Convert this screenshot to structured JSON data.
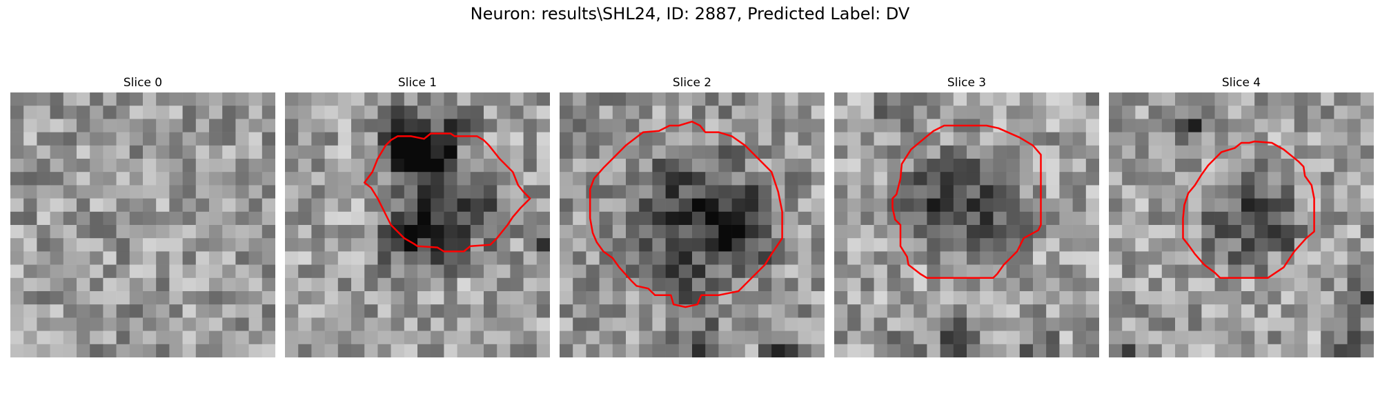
{
  "figure": {
    "title": "Neuron: results\\SHL24, ID: 2887, Predicted Label: DV"
  },
  "panels": [
    {
      "title": "Slice 0",
      "contour": [],
      "blobs": [],
      "base": 155,
      "seed": 11
    },
    {
      "title": "Slice 1",
      "contour": [
        [
          10.5,
          3.5
        ],
        [
          11,
          3.1
        ],
        [
          12.5,
          3.1
        ],
        [
          12.8,
          3.3
        ],
        [
          14.5,
          3.3
        ],
        [
          15,
          3.6
        ],
        [
          15.4,
          4
        ],
        [
          16.2,
          5
        ],
        [
          17.2,
          6
        ],
        [
          17.6,
          7
        ],
        [
          18,
          7.5
        ],
        [
          18.5,
          8
        ],
        [
          17.8,
          8.7
        ],
        [
          17.2,
          9.4
        ],
        [
          16.8,
          10
        ],
        [
          16,
          11
        ],
        [
          15.5,
          11.5
        ],
        [
          14,
          11.6
        ],
        [
          13.5,
          12
        ],
        [
          12,
          12
        ],
        [
          11.5,
          11.7
        ],
        [
          10,
          11.6
        ],
        [
          9.7,
          11.4
        ],
        [
          9,
          11
        ],
        [
          8,
          10
        ],
        [
          7.5,
          9
        ],
        [
          7,
          8
        ],
        [
          6.5,
          7.2
        ],
        [
          6,
          6.8
        ],
        [
          6.6,
          6
        ],
        [
          7,
          5
        ],
        [
          7.6,
          4
        ],
        [
          8,
          3.6
        ],
        [
          8.5,
          3.3
        ],
        [
          9.5,
          3.3
        ]
      ],
      "blobs": [
        [
          9,
          3,
          4,
          120
        ],
        [
          10,
          4,
          3,
          110
        ],
        [
          12,
          8,
          6,
          110
        ],
        [
          9,
          11,
          4,
          80
        ],
        [
          20,
          11,
          2,
          120
        ],
        [
          13,
          2,
          2,
          90
        ]
      ],
      "base": 160,
      "seed": 23
    },
    {
      "title": "Slice 2",
      "contour": [
        [
          9,
          2.5
        ],
        [
          10,
          2.2
        ],
        [
          10.6,
          2.5
        ],
        [
          11,
          3
        ],
        [
          12,
          3
        ],
        [
          13,
          3.3
        ],
        [
          14,
          4
        ],
        [
          15,
          5
        ],
        [
          16,
          6
        ],
        [
          16.5,
          7.5
        ],
        [
          16.8,
          9
        ],
        [
          16.8,
          11
        ],
        [
          16,
          12.2
        ],
        [
          15.5,
          13
        ],
        [
          14.5,
          14
        ],
        [
          13.5,
          15
        ],
        [
          12,
          15.3
        ],
        [
          10.7,
          15.3
        ],
        [
          10.4,
          16
        ],
        [
          9.5,
          16.2
        ],
        [
          8.6,
          16
        ],
        [
          8.4,
          15.3
        ],
        [
          7.2,
          15.3
        ],
        [
          6.7,
          14.8
        ],
        [
          5.8,
          14.6
        ],
        [
          5.4,
          14.2
        ],
        [
          4.5,
          13.2
        ],
        [
          4,
          12.5
        ],
        [
          3.3,
          12
        ],
        [
          2.8,
          11.3
        ],
        [
          2.5,
          10.6
        ],
        [
          2.3,
          9.5
        ],
        [
          2.3,
          7.3
        ],
        [
          2.6,
          6.5
        ],
        [
          3.3,
          5.7
        ],
        [
          4,
          5
        ],
        [
          5,
          4
        ],
        [
          6.3,
          3
        ],
        [
          7.5,
          2.9
        ],
        [
          8.3,
          2.5
        ]
      ],
      "blobs": [
        [
          10,
          9,
          7,
          110
        ],
        [
          8,
          14,
          3,
          70
        ],
        [
          10,
          19,
          3,
          90
        ],
        [
          16,
          19,
          2,
          120
        ],
        [
          13,
          10,
          4,
          60
        ]
      ],
      "base": 150,
      "seed": 37
    },
    {
      "title": "Slice 3",
      "contour": [
        [
          10,
          2.5
        ],
        [
          11.5,
          2.5
        ],
        [
          12.4,
          2.7
        ],
        [
          14,
          3.4
        ],
        [
          15,
          4
        ],
        [
          15.6,
          4.7
        ],
        [
          15.6,
          6.3
        ],
        [
          15.6,
          8
        ],
        [
          15.6,
          10
        ],
        [
          15.4,
          10.4
        ],
        [
          14.3,
          11
        ],
        [
          13.8,
          12
        ],
        [
          12.8,
          13
        ],
        [
          12.3,
          13.7
        ],
        [
          12,
          14
        ],
        [
          10.5,
          14
        ],
        [
          9.5,
          14
        ],
        [
          8.5,
          14
        ],
        [
          7,
          14
        ],
        [
          6.5,
          13.7
        ],
        [
          5.6,
          13
        ],
        [
          5.5,
          12.4
        ],
        [
          5,
          11.6
        ],
        [
          5,
          10
        ],
        [
          4.6,
          9.6
        ],
        [
          4.4,
          8.7
        ],
        [
          4.4,
          8
        ],
        [
          4.7,
          7.7
        ],
        [
          5,
          6.5
        ],
        [
          5.1,
          5.4
        ],
        [
          5.8,
          4.3
        ],
        [
          7,
          3.3
        ],
        [
          7.5,
          2.9
        ],
        [
          8.3,
          2.5
        ]
      ],
      "blobs": [
        [
          10,
          8,
          6,
          100
        ],
        [
          6,
          8,
          3,
          70
        ],
        [
          9,
          18,
          3,
          80
        ],
        [
          5,
          19,
          2,
          70
        ],
        [
          15,
          19,
          2,
          80
        ],
        [
          4,
          1,
          2,
          90
        ]
      ],
      "base": 160,
      "seed": 41
    },
    {
      "title": "Slice 4",
      "contour": [
        [
          9.5,
          4.2
        ],
        [
          10,
          3.8
        ],
        [
          10.6,
          3.8
        ],
        [
          11,
          3.7
        ],
        [
          12.3,
          3.8
        ],
        [
          13.2,
          4.3
        ],
        [
          14.3,
          5.2
        ],
        [
          14.7,
          5.6
        ],
        [
          14.8,
          6.3
        ],
        [
          15.3,
          7
        ],
        [
          15.5,
          8
        ],
        [
          15.5,
          10
        ],
        [
          15.5,
          10.5
        ],
        [
          14.9,
          11
        ],
        [
          14,
          12
        ],
        [
          13.2,
          13.2
        ],
        [
          12,
          14
        ],
        [
          10.7,
          14
        ],
        [
          9.3,
          14
        ],
        [
          8.4,
          14
        ],
        [
          8,
          13.6
        ],
        [
          7.2,
          13
        ],
        [
          6.5,
          12.2
        ],
        [
          6,
          11.5
        ],
        [
          5.6,
          11
        ],
        [
          5.6,
          9.5
        ],
        [
          5.7,
          8.5
        ],
        [
          6,
          7.6
        ],
        [
          6.5,
          7
        ],
        [
          7,
          6.2
        ],
        [
          7.5,
          5.5
        ],
        [
          8,
          5
        ],
        [
          8.5,
          4.5
        ]
      ],
      "blobs": [
        [
          10,
          9,
          5,
          100
        ],
        [
          12,
          10,
          2,
          90
        ],
        [
          6,
          2,
          2,
          90
        ],
        [
          18,
          19,
          3,
          70
        ],
        [
          1,
          19,
          2,
          70
        ],
        [
          19,
          15,
          2,
          80
        ]
      ],
      "base": 160,
      "seed": 53
    }
  ],
  "colors": {
    "contour": "#ff0000"
  }
}
